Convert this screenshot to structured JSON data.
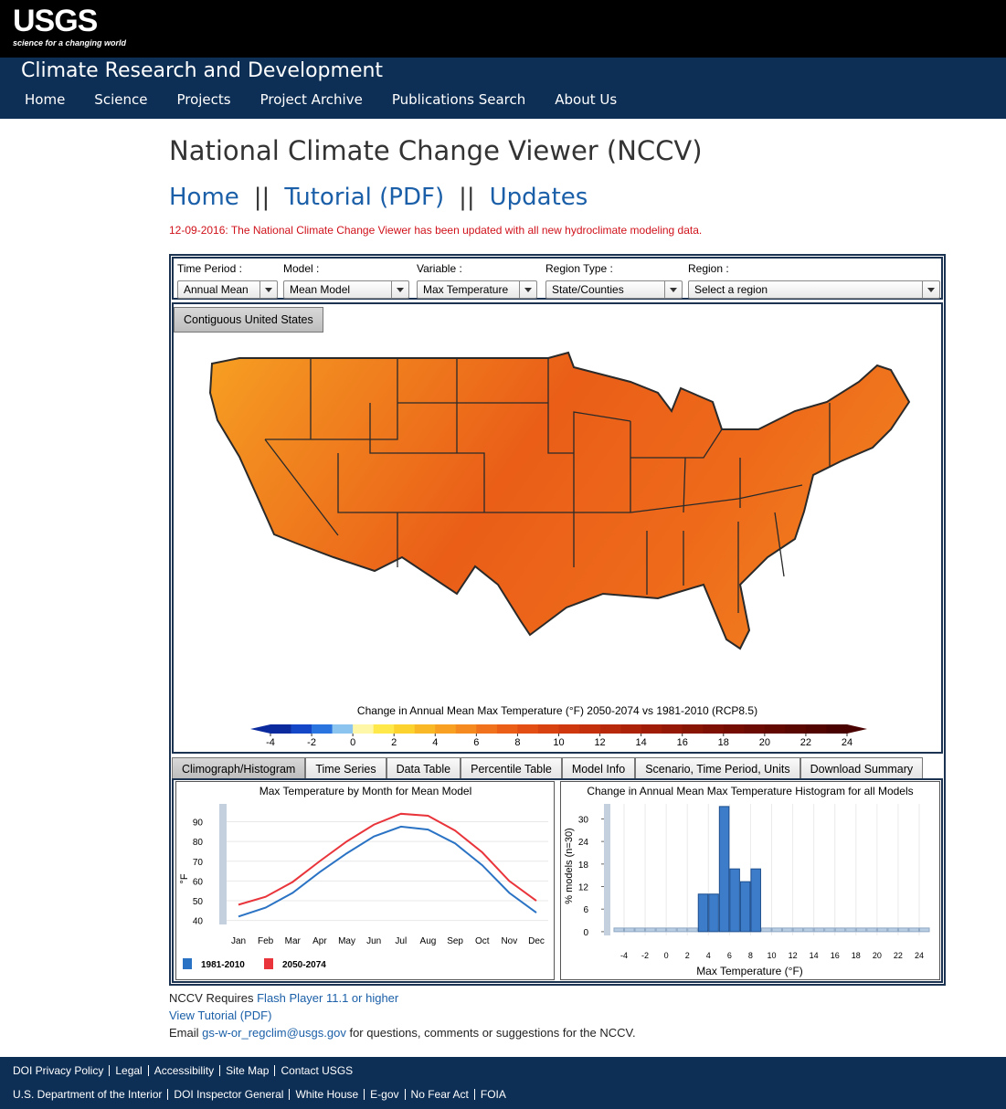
{
  "header": {
    "logo": "USGS",
    "tagline": "science for a changing world",
    "site_title": "Climate Research and Development",
    "nav": [
      "Home",
      "Science",
      "Projects",
      "Project Archive",
      "Publications Search",
      "About Us"
    ]
  },
  "page": {
    "title": "National Climate Change Viewer (NCCV)",
    "links": [
      "Home",
      "Tutorial (PDF)",
      "Updates"
    ],
    "separator": "||",
    "notice": "12-09-2016: The National Climate Change Viewer has been updated with all new hydroclimate modeling data."
  },
  "controls": [
    {
      "label": "Time Period :",
      "value": "Annual Mean"
    },
    {
      "label": "Model :",
      "value": "Mean Model"
    },
    {
      "label": "Variable :",
      "value": "Max Temperature"
    },
    {
      "label": "Region Type :",
      "value": "State/Counties"
    },
    {
      "label": "Region :",
      "value": "Select a region"
    }
  ],
  "map": {
    "tab": "Contiguous United States",
    "colorbar": {
      "title": "Change in Annual Mean Max Temperature (°F) 2050-2074 vs 1981-2010 (RCP8.5)",
      "lim": [
        -4,
        24
      ],
      "ticks": [
        -4,
        -2,
        0,
        2,
        4,
        6,
        8,
        10,
        12,
        14,
        16,
        18,
        20,
        22,
        24
      ],
      "colors": [
        "#0b2a9e",
        "#1447c8",
        "#2a74e0",
        "#8cc4f0",
        "#fff7a8",
        "#ffe84a",
        "#fcd22e",
        "#f9b826",
        "#f7a022",
        "#f48a20",
        "#f0721c",
        "#ea5e18",
        "#e24e14",
        "#d84210",
        "#cf380e",
        "#c4300c",
        "#b8280a",
        "#ac2208",
        "#a01c06",
        "#941805",
        "#881404",
        "#7e1003",
        "#740c02",
        "#6a0a02",
        "#620801",
        "#5a0601",
        "#520400",
        "#4a0200"
      ]
    }
  },
  "tabs": [
    "Climograph/Histogram",
    "Time Series",
    "Data Table",
    "Percentile Table",
    "Model Info",
    "Scenario, Time Period, Units",
    "Download Summary"
  ],
  "chart_data": [
    {
      "type": "line",
      "title": "Max Temperature by Month for Mean Model",
      "y_label": "°F",
      "categories": [
        "Jan",
        "Feb",
        "Mar",
        "Apr",
        "May",
        "Jun",
        "Jul",
        "Aug",
        "Sep",
        "Oct",
        "Nov",
        "Dec"
      ],
      "series": [
        {
          "name": "1981-2010",
          "color": "#2a73c4",
          "values": [
            42,
            46.5,
            54,
            64.5,
            74,
            82.5,
            87.5,
            86,
            79,
            68,
            54,
            44
          ]
        },
        {
          "name": "2050-2074",
          "color": "#e8343a",
          "values": [
            48,
            52,
            59.5,
            70,
            80,
            88.5,
            94,
            93,
            85.5,
            74.5,
            60,
            50
          ]
        }
      ],
      "ylim": [
        38,
        99
      ],
      "yticks": [
        40,
        50,
        60,
        70,
        80,
        90
      ],
      "grid": true
    },
    {
      "type": "histogram",
      "title": "Change in Annual Mean Max Temperature Histogram for all Models",
      "x_label": "Max Temperature (°F)",
      "y_label": "% models (n=30)",
      "bins": [
        -5,
        -4,
        -3,
        -2,
        -1,
        0,
        1,
        2,
        3,
        4,
        5,
        6,
        7,
        8,
        9,
        10,
        11,
        12,
        13,
        14,
        15,
        16,
        17,
        18,
        19,
        20,
        21,
        22,
        23,
        24,
        25
      ],
      "counts": [
        0,
        0,
        0,
        0,
        0,
        0,
        0,
        0,
        10,
        10,
        33.3,
        16.7,
        13.3,
        16.7,
        0,
        0,
        0,
        0,
        0,
        0,
        0,
        0,
        0,
        0,
        0,
        0,
        0,
        0,
        0,
        0
      ],
      "color": "#3d7cc9",
      "empty_color": "#b9cde2",
      "xlim": [
        -5.3,
        25.3
      ],
      "xticks": [
        -4,
        -2,
        0,
        2,
        4,
        6,
        8,
        10,
        12,
        14,
        16,
        18,
        20,
        22,
        24
      ],
      "ylim": [
        -1,
        34
      ],
      "yticks": [
        0,
        6,
        12,
        18,
        24,
        30
      ],
      "grid": true
    }
  ],
  "footer": {
    "requires": "NCCV Requires",
    "flash_link": "Flash Player 11.1 or higher",
    "tutorial_link": "View Tutorial (PDF)",
    "email_prefix": "Email",
    "email": "gs-w-or_regclim@usgs.gov",
    "email_suffix": "for questions, comments or suggestions for the NCCV.",
    "links_1": [
      "DOI Privacy Policy",
      "Legal",
      "Accessibility",
      "Site Map",
      "Contact USGS"
    ],
    "links_2": [
      "U.S. Department of the Interior",
      "DOI Inspector General",
      "White House",
      "E-gov",
      "No Fear Act",
      "FOIA"
    ]
  }
}
